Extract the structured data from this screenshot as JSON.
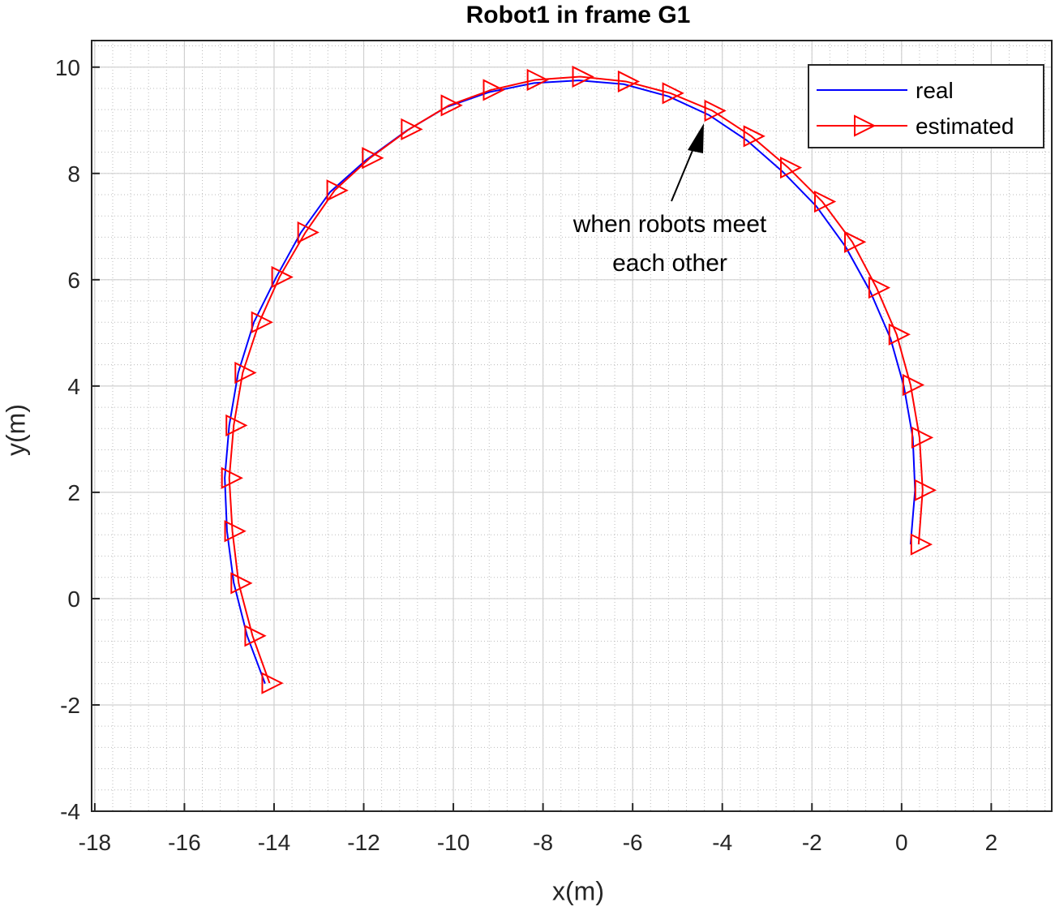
{
  "chart_data": {
    "type": "line",
    "title": "Robot1 in frame G1",
    "xlabel": "x(m)",
    "ylabel": "y(m)",
    "xlim": [
      -18.07,
      3.35
    ],
    "ylim": [
      -4,
      10.5
    ],
    "xticks": [
      -18,
      -16,
      -14,
      -12,
      -10,
      -8,
      -6,
      -4,
      -2,
      0,
      2
    ],
    "yticks": [
      -4,
      -2,
      0,
      2,
      4,
      6,
      8,
      10
    ],
    "grid": true,
    "minor_grid": true,
    "legend": "northeast",
    "annotation": [
      "when robots meet",
      "each other"
    ],
    "series": [
      {
        "name": "real",
        "color": "#0000ff",
        "x": [
          -14.2,
          -14.6,
          -14.9,
          -15.05,
          -15.1,
          -15.0,
          -14.8,
          -14.45,
          -13.95,
          -13.4,
          -12.75,
          -11.95,
          -11.05,
          -10.15,
          -9.2,
          -8.2,
          -7.2,
          -6.2,
          -5.2,
          -4.3,
          -3.45,
          -2.65,
          -1.9,
          -1.25,
          -0.7,
          -0.25,
          0.05,
          0.25,
          0.3,
          0.2
        ],
        "values": [
          -1.6,
          -0.7,
          0.3,
          1.27,
          2.27,
          3.26,
          4.25,
          5.2,
          6.05,
          6.89,
          7.65,
          8.25,
          8.8,
          9.25,
          9.53,
          9.7,
          9.75,
          9.68,
          9.45,
          9.1,
          8.62,
          8.03,
          7.38,
          6.62,
          5.78,
          4.9,
          4.0,
          3.03,
          2.04,
          1.02
        ]
      },
      {
        "name": "estimated",
        "color": "#ff0000",
        "marker": "triangle-right",
        "x": [
          -14.1,
          -14.48,
          -14.79,
          -14.93,
          -15.0,
          -14.9,
          -14.7,
          -14.33,
          -13.88,
          -13.3,
          -12.65,
          -11.86,
          -10.99,
          -10.1,
          -9.16,
          -8.18,
          -7.17,
          -6.15,
          -5.16,
          -4.22,
          -3.35,
          -2.53,
          -1.77,
          -1.1,
          -0.56,
          -0.11,
          0.2,
          0.4,
          0.47,
          0.38
        ],
        "values": [
          -1.59,
          -0.7,
          0.29,
          1.27,
          2.27,
          3.26,
          4.25,
          5.2,
          6.05,
          6.89,
          7.68,
          8.29,
          8.83,
          9.28,
          9.57,
          9.76,
          9.82,
          9.73,
          9.51,
          9.18,
          8.7,
          8.11,
          7.47,
          6.71,
          5.85,
          4.97,
          4.02,
          3.03,
          2.04,
          1.02
        ]
      }
    ]
  }
}
